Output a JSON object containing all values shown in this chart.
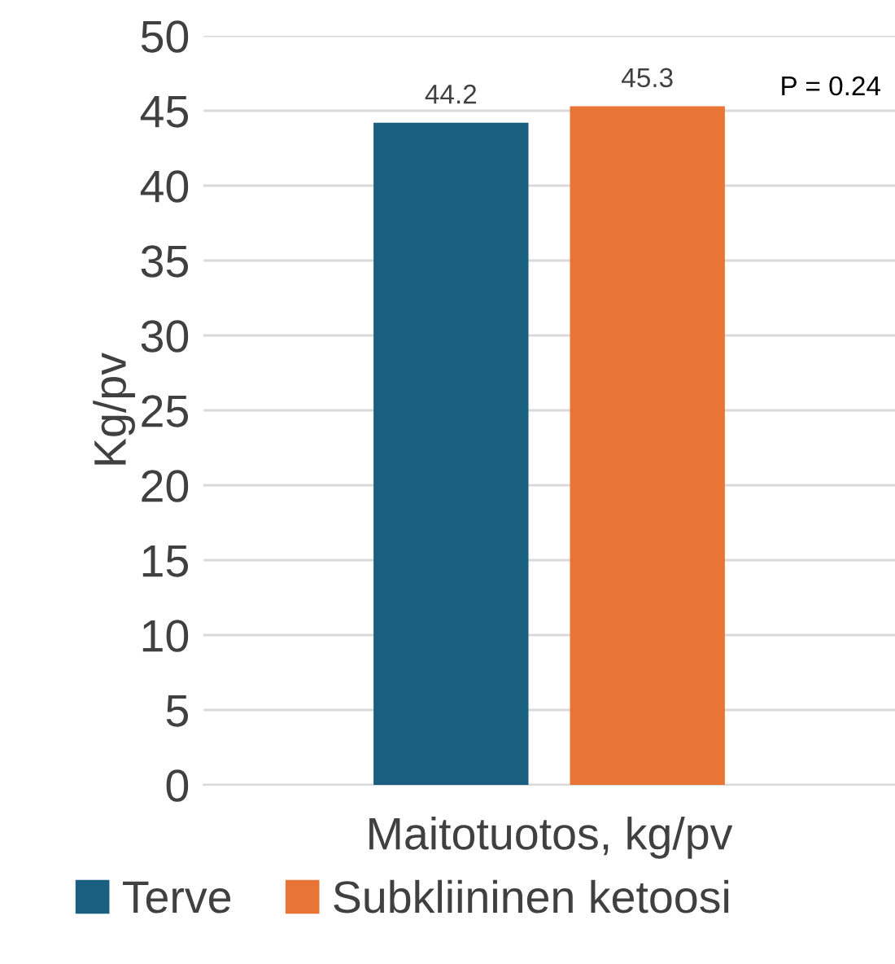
{
  "chart_data": {
    "type": "bar",
    "ylabel": "Kg/pv",
    "categories": [
      "Maitotuotos, kg/pv"
    ],
    "series": [
      {
        "name": "Terve",
        "color": "#1a5e80",
        "values": [
          44.2
        ]
      },
      {
        "name": "Subkliininen ketoosi",
        "color": "#e87435",
        "values": [
          45.3
        ]
      }
    ],
    "ylim": [
      0,
      50
    ],
    "yticks": [
      0,
      5,
      10,
      15,
      20,
      25,
      30,
      35,
      40,
      45,
      50
    ],
    "grid": "y",
    "legend": "bottom",
    "data_labels": true,
    "annotations": [
      "P = 0.24"
    ]
  }
}
